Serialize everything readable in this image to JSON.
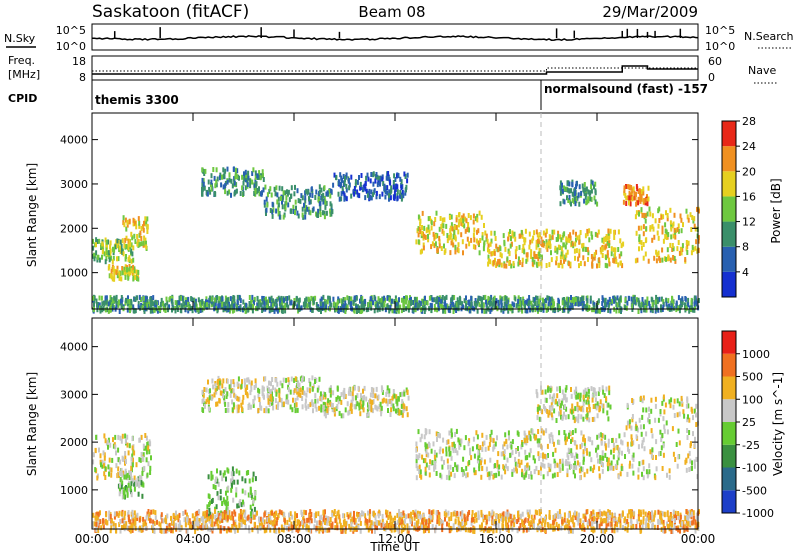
{
  "header": {
    "station": "Saskatoon (fitACF)",
    "beam": "Beam 08",
    "date": "29/Mar/2009"
  },
  "top_panels": {
    "nsky_label": "N.Sky",
    "nsky_ticks": [
      "10^5",
      "10^0"
    ],
    "nsearch_label": "N.Search",
    "nsearch_ticks": [
      "10^5",
      "10^0"
    ],
    "freq_label_1": "Freq.",
    "freq_label_2": "[MHz]",
    "freq_ticks": [
      "18",
      "8"
    ],
    "nave_label": "Nave",
    "nave_ticks": [
      "60",
      "0"
    ],
    "cpid_label": "CPID",
    "cpid_mode_1": "themis 3300",
    "cpid_mode_2": "normalsound (fast) -157"
  },
  "chart_data": [
    {
      "type": "heatmap",
      "panel": "power",
      "ylabel": "Slant Range [km]",
      "xlabel": "",
      "x_range_hours": [
        0,
        24
      ],
      "y_range_km": [
        180,
        4600
      ],
      "y_ticks": [
        "1000",
        "2000",
        "3000",
        "4000"
      ],
      "colorbar_label": "Power [dB]",
      "colorbar_ticks": [
        "4",
        "8",
        "12",
        "16",
        "20",
        "24",
        "28"
      ],
      "colorbar_colors": [
        "#1530d0",
        "#2860b0",
        "#3a8f6a",
        "#6ec840",
        "#e6d020",
        "#f09020",
        "#e82818"
      ],
      "bands": [
        {
          "x0": 0.0,
          "x1": 1.6,
          "y0": 1300,
          "y1": 1800,
          "level": 3
        },
        {
          "x0": 1.2,
          "x1": 2.2,
          "y0": 1600,
          "y1": 2300,
          "level": 4
        },
        {
          "x0": 0.6,
          "x1": 1.8,
          "y0": 900,
          "y1": 1200,
          "level": 4
        },
        {
          "x0": 4.3,
          "x1": 6.8,
          "y0": 2800,
          "y1": 3400,
          "level": 2
        },
        {
          "x0": 6.8,
          "x1": 9.5,
          "y0": 2300,
          "y1": 3000,
          "level": 2
        },
        {
          "x0": 9.5,
          "x1": 12.5,
          "y0": 2700,
          "y1": 3300,
          "level": 1
        },
        {
          "x0": 12.8,
          "x1": 15.5,
          "y0": 1500,
          "y1": 2400,
          "level": 4
        },
        {
          "x0": 15.5,
          "x1": 21.0,
          "y0": 1200,
          "y1": 2000,
          "level": 4
        },
        {
          "x0": 18.5,
          "x1": 20.0,
          "y0": 2600,
          "y1": 3100,
          "level": 2
        },
        {
          "x0": 21.0,
          "x1": 22.0,
          "y0": 2600,
          "y1": 3000,
          "level": 5
        },
        {
          "x0": 21.5,
          "x1": 24.0,
          "y0": 1300,
          "y1": 2500,
          "level": 4
        },
        {
          "x0": 0.0,
          "x1": 24.0,
          "y0": 180,
          "y1": 500,
          "level": 2
        }
      ]
    },
    {
      "type": "heatmap",
      "panel": "velocity",
      "ylabel": "Slant Range [km]",
      "xlabel": "Time UT",
      "x_range_hours": [
        0,
        24
      ],
      "x_ticks": [
        "00:00",
        "04:00",
        "08:00",
        "12:00",
        "16:00",
        "20:00",
        "00:00"
      ],
      "y_range_km": [
        180,
        4600
      ],
      "y_ticks": [
        "1000",
        "2000",
        "3000",
        "4000"
      ],
      "colorbar_label": "Velocity [m s^-1]",
      "colorbar_ticks": [
        "1000",
        "500",
        "100",
        "25",
        "-25",
        "-100",
        "-500",
        "-1000"
      ],
      "colorbar_colors": [
        "#1d3fc8",
        "#2a6a8a",
        "#3a9040",
        "#66cc33",
        "#c8c8c8",
        "#f0b020",
        "#f07020",
        "#e82018"
      ],
      "bands": [
        {
          "x0": 0.0,
          "x1": 2.3,
          "y0": 1300,
          "y1": 2200,
          "level": 4
        },
        {
          "x0": 1.0,
          "x1": 2.0,
          "y0": 900,
          "y1": 1400,
          "level": 3
        },
        {
          "x0": 4.3,
          "x1": 9.0,
          "y0": 2700,
          "y1": 3400,
          "level": 4
        },
        {
          "x0": 9.0,
          "x1": 12.5,
          "y0": 2600,
          "y1": 3200,
          "level": 4
        },
        {
          "x0": 12.8,
          "x1": 21.0,
          "y0": 1300,
          "y1": 2300,
          "level": 4
        },
        {
          "x0": 17.5,
          "x1": 20.5,
          "y0": 2500,
          "y1": 3200,
          "level": 4
        },
        {
          "x0": 21.0,
          "x1": 24.0,
          "y0": 1300,
          "y1": 3000,
          "level": 4
        },
        {
          "x0": 4.5,
          "x1": 6.5,
          "y0": 400,
          "y1": 1500,
          "level": 3
        },
        {
          "x0": 0.0,
          "x1": 24.0,
          "y0": 180,
          "y1": 600,
          "level": 5
        }
      ]
    }
  ]
}
